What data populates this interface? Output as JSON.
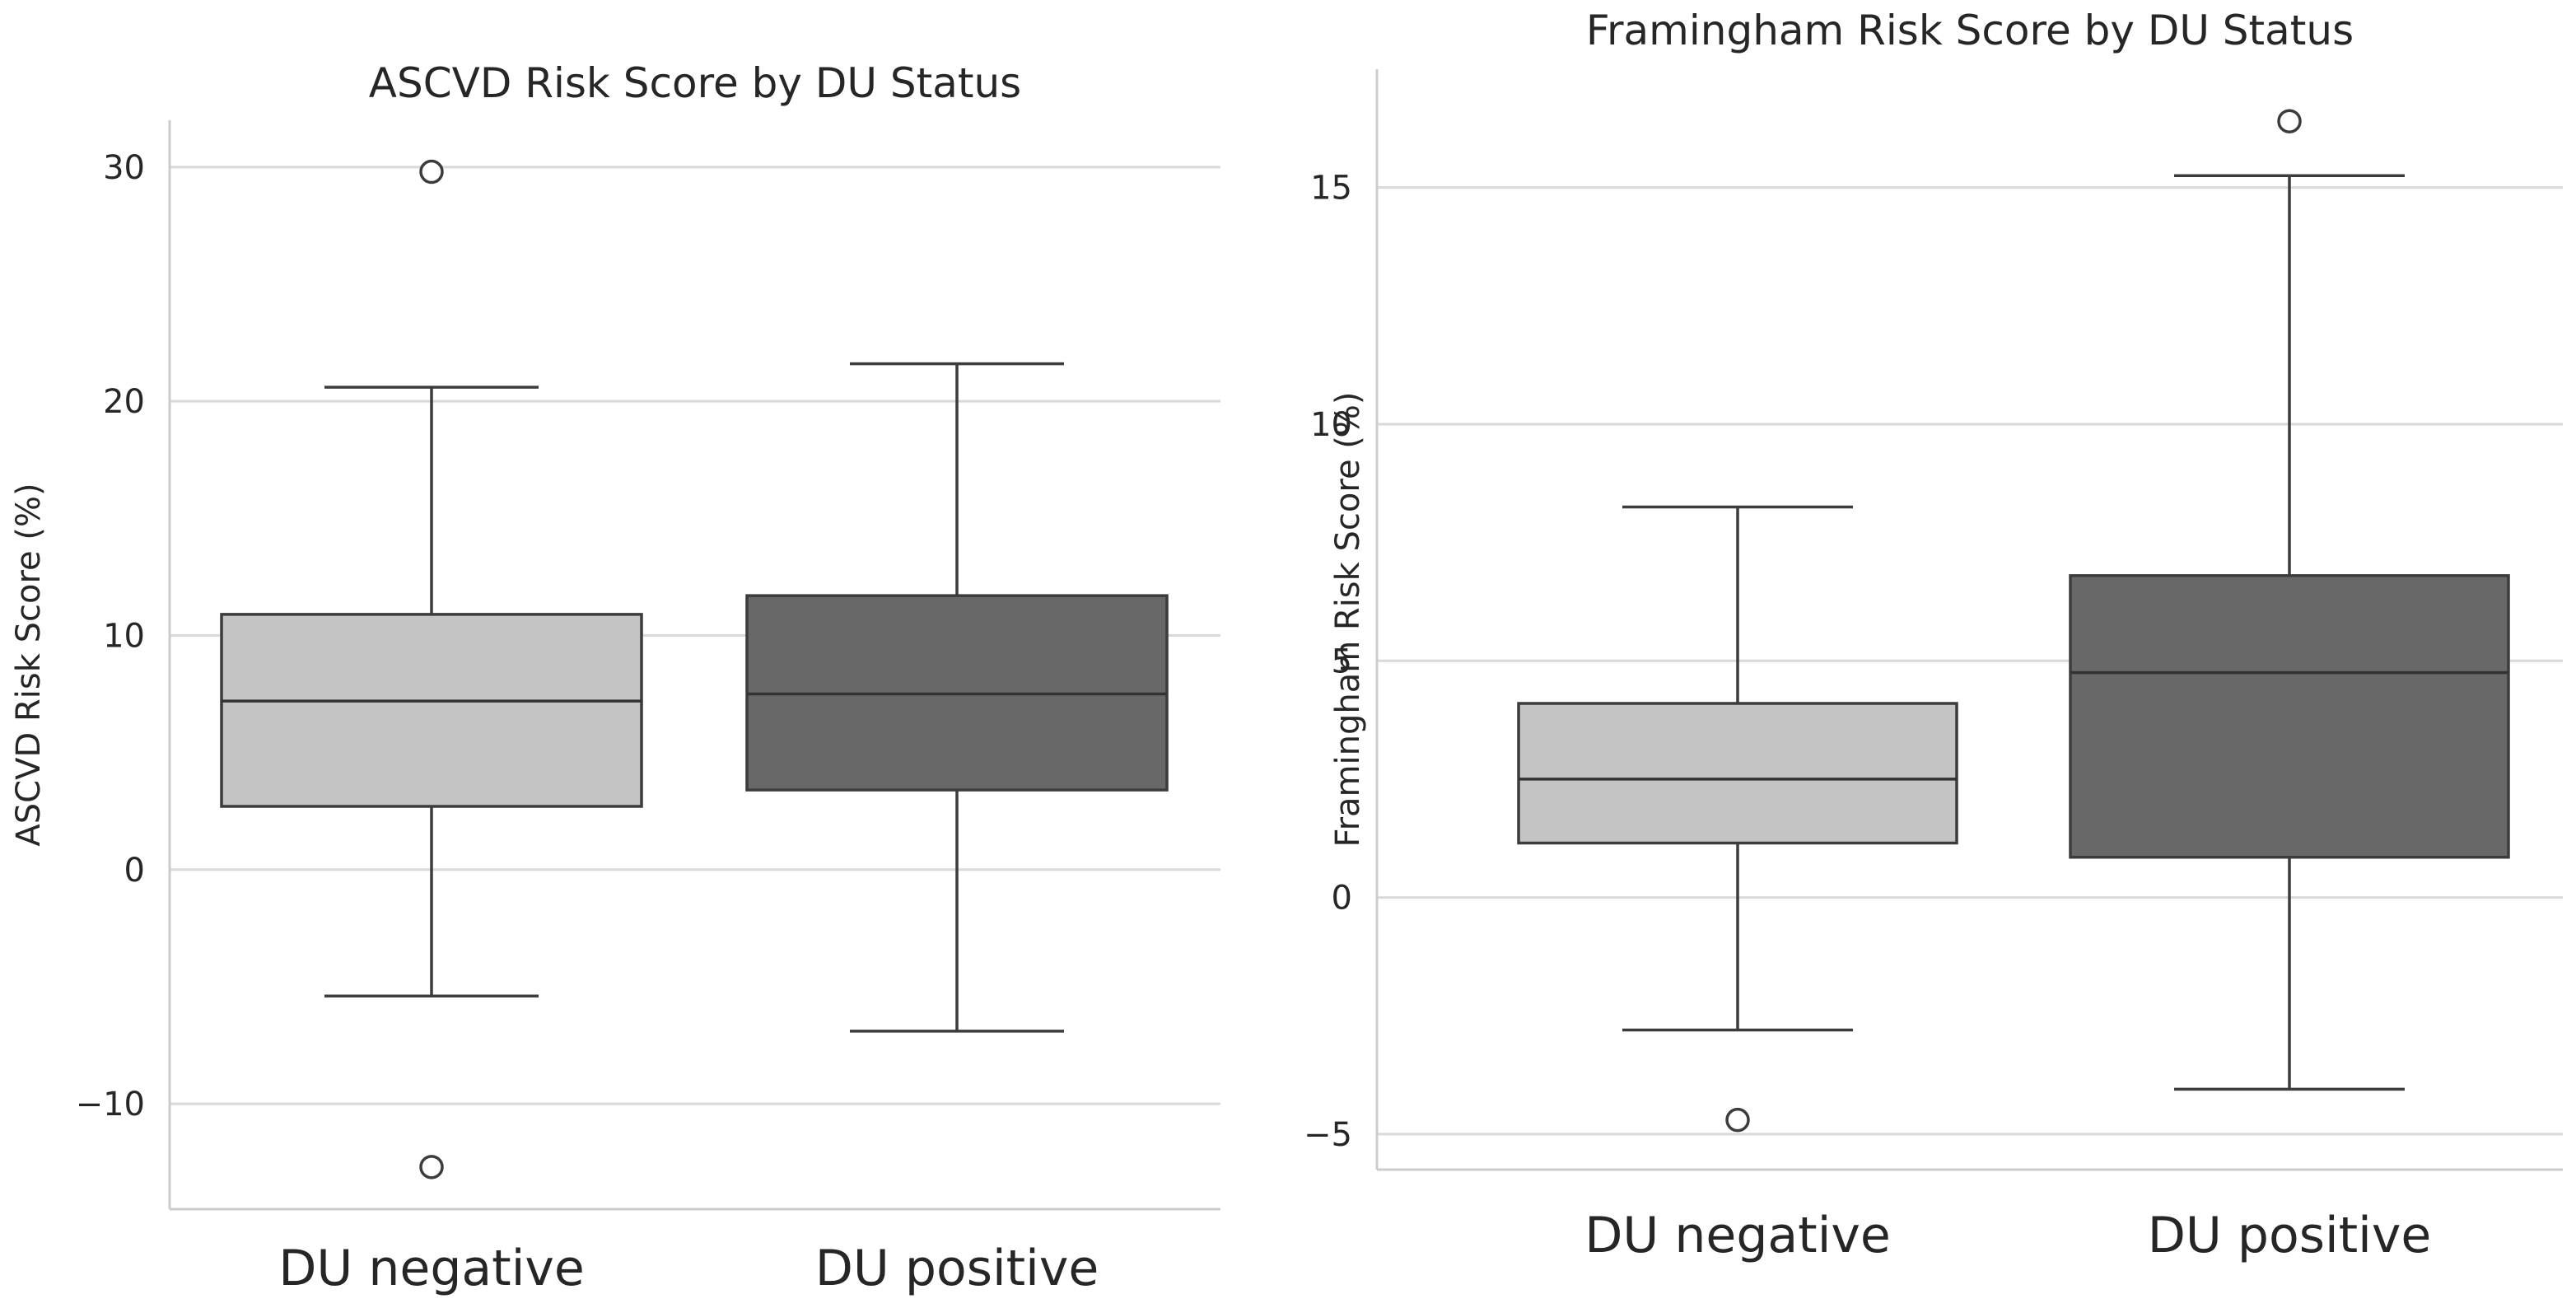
{
  "colors": {
    "negative_fill": "#c4c4c4",
    "positive_fill": "#686868",
    "line": "#3c3c3c",
    "grid": "#d9d9d9"
  },
  "chart_data": [
    {
      "type": "box",
      "title": "ASCVD Risk Score by DU Status",
      "xlabel": "",
      "ylabel": "ASCVD Risk Score (%)",
      "ylim": [
        -14.5,
        32
      ],
      "yticks": [
        -10,
        0,
        10,
        20,
        30
      ],
      "ytick_labels": [
        "−10",
        "0",
        "10",
        "20",
        "30"
      ],
      "categories": [
        "DU negative",
        "DU positive"
      ],
      "boxes": [
        {
          "category": "DU negative",
          "whisker_low": -5.4,
          "q1": 2.7,
          "median": 7.2,
          "q3": 10.9,
          "whisker_high": 20.6,
          "outliers": [
            29.8,
            -12.7
          ]
        },
        {
          "category": "DU positive",
          "whisker_low": -6.9,
          "q1": 3.4,
          "median": 7.5,
          "q3": 11.7,
          "whisker_high": 21.6,
          "outliers": []
        }
      ]
    },
    {
      "type": "box",
      "title": "Framingham Risk Score by DU Status",
      "xlabel": "",
      "ylabel": "Framingham Risk Score (%)",
      "ylim": [
        -5.75,
        17.5
      ],
      "yticks": [
        -5,
        0,
        5,
        10,
        15
      ],
      "ytick_labels": [
        "−5",
        "0",
        "5",
        "10",
        "15"
      ],
      "categories": [
        "DU negative",
        "DU positive"
      ],
      "boxes": [
        {
          "category": "DU negative",
          "whisker_low": -2.8,
          "q1": 1.15,
          "median": 2.5,
          "q3": 4.1,
          "whisker_high": 8.25,
          "outliers": [
            -4.7
          ]
        },
        {
          "category": "DU positive",
          "whisker_low": -4.05,
          "q1": 0.85,
          "median": 4.75,
          "q3": 6.8,
          "whisker_high": 15.25,
          "outliers": [
            16.4
          ]
        }
      ]
    }
  ]
}
